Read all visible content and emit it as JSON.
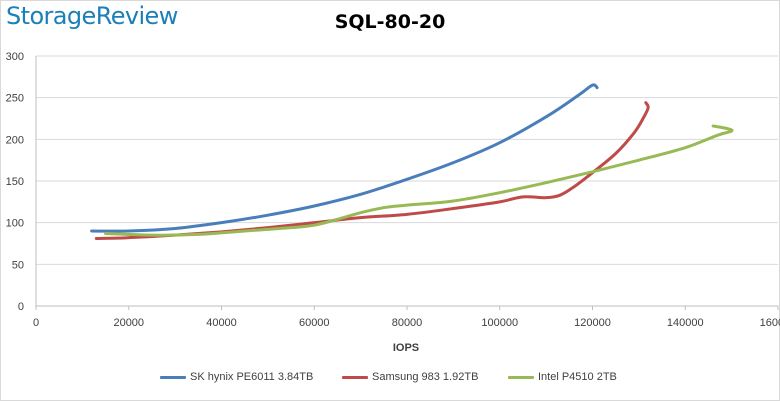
{
  "brand": {
    "logo_text": "StorageReview",
    "logo_color": "#1b7fb8"
  },
  "chart_data": {
    "type": "line",
    "title": "SQL-80-20",
    "xlabel": "IOPS",
    "ylabel": "",
    "xlim": [
      0,
      160000
    ],
    "ylim": [
      0,
      300
    ],
    "x_ticks": [
      "0",
      "20000",
      "40000",
      "60000",
      "80000",
      "100000",
      "120000",
      "140000",
      "160000"
    ],
    "y_ticks": [
      "0",
      "50",
      "100",
      "150",
      "200",
      "250",
      "300"
    ],
    "grid": "horizontal",
    "legend_position": "bottom",
    "series": [
      {
        "name": "SK hynix PE6011 3.84TB",
        "color": "#4a7ebb",
        "points": [
          [
            12000,
            90
          ],
          [
            20000,
            90
          ],
          [
            30000,
            93
          ],
          [
            40000,
            100
          ],
          [
            50000,
            109
          ],
          [
            60000,
            120
          ],
          [
            70000,
            134
          ],
          [
            80000,
            152
          ],
          [
            90000,
            172
          ],
          [
            100000,
            196
          ],
          [
            110000,
            227
          ],
          [
            117000,
            253
          ],
          [
            120000,
            265
          ],
          [
            121000,
            262
          ]
        ]
      },
      {
        "name": "Samsung 983 1.92TB",
        "color": "#be4b48",
        "points": [
          [
            13000,
            81
          ],
          [
            20000,
            82
          ],
          [
            30000,
            85
          ],
          [
            40000,
            89
          ],
          [
            50000,
            94
          ],
          [
            60000,
            100
          ],
          [
            70000,
            106
          ],
          [
            80000,
            110
          ],
          [
            90000,
            117
          ],
          [
            100000,
            125
          ],
          [
            105000,
            131
          ],
          [
            110000,
            130
          ],
          [
            113000,
            133
          ],
          [
            116000,
            143
          ],
          [
            120000,
            160
          ],
          [
            125000,
            183
          ],
          [
            129000,
            208
          ],
          [
            131000,
            226
          ],
          [
            132000,
            238
          ],
          [
            131500,
            244
          ]
        ]
      },
      {
        "name": "Intel P4510 2TB",
        "color": "#98b954",
        "points": [
          [
            15000,
            87
          ],
          [
            25000,
            85
          ],
          [
            35000,
            86
          ],
          [
            45000,
            90
          ],
          [
            55000,
            94
          ],
          [
            60000,
            97
          ],
          [
            65000,
            104
          ],
          [
            70000,
            112
          ],
          [
            75000,
            118
          ],
          [
            80000,
            121
          ],
          [
            90000,
            126
          ],
          [
            100000,
            136
          ],
          [
            110000,
            148
          ],
          [
            120000,
            161
          ],
          [
            130000,
            175
          ],
          [
            140000,
            190
          ],
          [
            147000,
            205
          ],
          [
            150000,
            210
          ],
          [
            149000,
            213
          ],
          [
            146000,
            216
          ]
        ]
      }
    ]
  }
}
